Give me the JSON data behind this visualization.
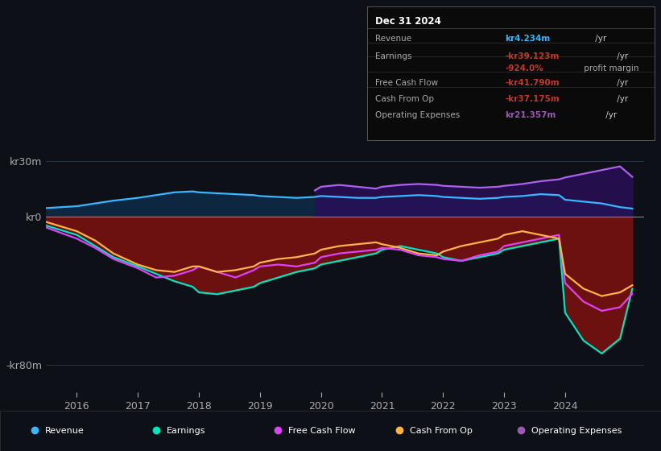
{
  "background_color": "#0d1117",
  "yticks": [
    "kr30m",
    "kr0",
    "-kr80m"
  ],
  "ytick_vals": [
    30,
    0,
    -80
  ],
  "ylim": [
    -95,
    45
  ],
  "xlim": [
    2015.5,
    2025.3
  ],
  "xtick_labels": [
    "2016",
    "2017",
    "2018",
    "2019",
    "2020",
    "2021",
    "2022",
    "2023",
    "2024"
  ],
  "xtick_vals": [
    2016,
    2017,
    2018,
    2019,
    2020,
    2021,
    2022,
    2023,
    2024
  ],
  "legend_items": [
    {
      "label": "Revenue",
      "color": "#38b6ff"
    },
    {
      "label": "Earnings",
      "color": "#00e5c0"
    },
    {
      "label": "Free Cash Flow",
      "color": "#e040fb"
    },
    {
      "label": "Cash From Op",
      "color": "#ffb347"
    },
    {
      "label": "Operating Expenses",
      "color": "#9b59b6"
    }
  ],
  "revenue": {
    "x": [
      2015.5,
      2016,
      2016.3,
      2016.6,
      2017.0,
      2017.3,
      2017.6,
      2017.9,
      2018.0,
      2018.3,
      2018.6,
      2018.9,
      2019.0,
      2019.3,
      2019.6,
      2019.9,
      2020.0,
      2020.3,
      2020.6,
      2020.9,
      2021.0,
      2021.3,
      2021.6,
      2021.9,
      2022.0,
      2022.3,
      2022.6,
      2022.9,
      2023.0,
      2023.3,
      2023.6,
      2023.9,
      2024.0,
      2024.3,
      2024.6,
      2024.9,
      2025.1
    ],
    "y": [
      4.5,
      5.5,
      7,
      8.5,
      10,
      11.5,
      13,
      13.5,
      13,
      12.5,
      12,
      11.5,
      11,
      10.5,
      10,
      10.5,
      11,
      10.5,
      10,
      10,
      10.5,
      11,
      11.5,
      11,
      10.5,
      10,
      9.5,
      10,
      10.5,
      11,
      12,
      11.5,
      9,
      8,
      7,
      5,
      4.234
    ],
    "color": "#38b6ff"
  },
  "op_expenses": {
    "x": [
      2019.9,
      2020.0,
      2020.3,
      2020.6,
      2020.9,
      2021.0,
      2021.3,
      2021.6,
      2021.9,
      2022.0,
      2022.3,
      2022.6,
      2022.9,
      2023.0,
      2023.3,
      2023.6,
      2023.9,
      2024.0,
      2024.3,
      2024.6,
      2024.9,
      2025.1
    ],
    "y": [
      14,
      16,
      17,
      16,
      15,
      16,
      17,
      17.5,
      17,
      16.5,
      16,
      15.5,
      16,
      16.5,
      17.5,
      19,
      20,
      21,
      23,
      25,
      27,
      21.357
    ],
    "color": "#b060f0"
  },
  "earnings": {
    "x": [
      2015.5,
      2016,
      2016.3,
      2016.6,
      2017.0,
      2017.3,
      2017.6,
      2017.9,
      2018.0,
      2018.3,
      2018.6,
      2018.9,
      2019.0,
      2019.3,
      2019.6,
      2019.9,
      2020.0,
      2020.3,
      2020.6,
      2020.9,
      2021.0,
      2021.3,
      2021.6,
      2021.9,
      2022.0,
      2022.3,
      2022.6,
      2022.9,
      2023.0,
      2023.3,
      2023.6,
      2023.9,
      2024.0,
      2024.3,
      2024.6,
      2024.9,
      2025.1
    ],
    "y": [
      -5,
      -10,
      -16,
      -22,
      -27,
      -31,
      -35,
      -38,
      -41,
      -42,
      -40,
      -38,
      -36,
      -33,
      -30,
      -28,
      -26,
      -24,
      -22,
      -20,
      -18,
      -16,
      -18,
      -20,
      -22,
      -24,
      -22,
      -20,
      -18,
      -16,
      -14,
      -12,
      -52,
      -67,
      -74,
      -66,
      -39.123
    ],
    "color": "#00e5c0"
  },
  "free_cash_flow": {
    "x": [
      2015.5,
      2016,
      2016.3,
      2016.6,
      2017.0,
      2017.3,
      2017.6,
      2017.9,
      2018.0,
      2018.3,
      2018.6,
      2018.9,
      2019.0,
      2019.3,
      2019.6,
      2019.9,
      2020.0,
      2020.3,
      2020.6,
      2020.9,
      2021.0,
      2021.3,
      2021.6,
      2021.9,
      2022.0,
      2022.3,
      2022.6,
      2022.9,
      2023.0,
      2023.3,
      2023.6,
      2023.9,
      2024.0,
      2024.3,
      2024.6,
      2024.9,
      2025.1
    ],
    "y": [
      -6,
      -12,
      -17,
      -23,
      -28,
      -33,
      -32,
      -29,
      -27,
      -30,
      -33,
      -29,
      -27,
      -26,
      -27,
      -25,
      -22,
      -20,
      -19,
      -18,
      -17,
      -18,
      -21,
      -22,
      -23,
      -24,
      -21,
      -19,
      -16,
      -14,
      -12,
      -10,
      -36,
      -46,
      -51,
      -49,
      -41.79
    ],
    "color": "#e040fb"
  },
  "cash_from_op": {
    "x": [
      2015.5,
      2016,
      2016.3,
      2016.6,
      2017.0,
      2017.3,
      2017.6,
      2017.9,
      2018.0,
      2018.3,
      2018.6,
      2018.9,
      2019.0,
      2019.3,
      2019.6,
      2019.9,
      2020.0,
      2020.3,
      2020.6,
      2020.9,
      2021.0,
      2021.3,
      2021.6,
      2021.9,
      2022.0,
      2022.3,
      2022.6,
      2022.9,
      2023.0,
      2023.3,
      2023.6,
      2023.9,
      2024.0,
      2024.3,
      2024.6,
      2024.9,
      2025.1
    ],
    "y": [
      -3,
      -8,
      -13,
      -20,
      -26,
      -29,
      -30,
      -27,
      -27,
      -30,
      -29,
      -27,
      -25,
      -23,
      -22,
      -20,
      -18,
      -16,
      -15,
      -14,
      -15,
      -17,
      -20,
      -21,
      -19,
      -16,
      -14,
      -12,
      -10,
      -8,
      -10,
      -12,
      -31,
      -39,
      -43,
      -41,
      -37.175
    ],
    "color": "#ffb347"
  },
  "info_box": {
    "title": "Dec 31 2024",
    "rows": [
      {
        "label": "Revenue",
        "value": "kr4.234m",
        "value_color": "#38b6ff",
        "suffix": " /yr",
        "suffix_color": "#cccccc"
      },
      {
        "label": "Earnings",
        "value": "-kr39.123m",
        "value_color": "#c0392b",
        "suffix": " /yr",
        "suffix_color": "#cccccc"
      },
      {
        "label": "",
        "value": "-924.0%",
        "value_color": "#c0392b",
        "suffix": " profit margin",
        "suffix_color": "#aaaaaa"
      },
      {
        "label": "Free Cash Flow",
        "value": "-kr41.790m",
        "value_color": "#c0392b",
        "suffix": " /yr",
        "suffix_color": "#cccccc"
      },
      {
        "label": "Cash From Op",
        "value": "-kr37.175m",
        "value_color": "#c0392b",
        "suffix": " /yr",
        "suffix_color": "#cccccc"
      },
      {
        "label": "Operating Expenses",
        "value": "kr21.357m",
        "value_color": "#9b59b6",
        "suffix": " /yr",
        "suffix_color": "#cccccc"
      }
    ]
  }
}
